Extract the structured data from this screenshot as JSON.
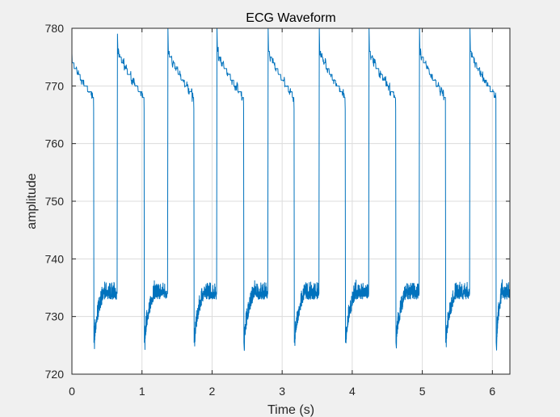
{
  "chart_data": {
    "type": "line",
    "title": "ECG Waveform",
    "xlabel": "Time (s)",
    "ylabel": "amplitude",
    "xlim": [
      0,
      6.25
    ],
    "ylim": [
      720,
      780
    ],
    "xticks": [
      0,
      1,
      2,
      3,
      4,
      5,
      6
    ],
    "yticks": [
      720,
      730,
      740,
      750,
      760,
      770,
      780
    ],
    "grid": true,
    "colors": {
      "line": "#0072BD",
      "axes_bg": "#ffffff",
      "figure_bg": "#f0f0f0",
      "grid": "#dcdcdc"
    },
    "series": [
      {
        "start": {
          "x": 0.0,
          "y": 774.5
        },
        "beats": [
          {
            "drop_t": 0.31,
            "peak_t": 0.65,
            "peak_y": 779
          },
          {
            "drop_t": 1.03,
            "peak_t": 1.37,
            "peak_y": 780
          },
          {
            "drop_t": 1.74,
            "peak_t": 2.07,
            "peak_y": 780
          },
          {
            "drop_t": 2.45,
            "peak_t": 2.8,
            "peak_y": 780
          },
          {
            "drop_t": 3.17,
            "peak_t": 3.53,
            "peak_y": 780
          },
          {
            "drop_t": 3.9,
            "peak_t": 4.24,
            "peak_y": 780
          },
          {
            "drop_t": 4.62,
            "peak_t": 4.96,
            "peak_y": 780
          },
          {
            "drop_t": 5.33,
            "peak_t": 5.68,
            "peak_y": 780
          },
          {
            "drop_t": 6.05,
            "peak_t": null,
            "peak_y": null
          }
        ],
        "shape": {
          "post_peak_y": 776,
          "pre_drop_y": 768,
          "post_drop_min_y": 725.5,
          "trough_plateau_y": 734,
          "end_y": 736,
          "noise_amplitude": 1.5
        }
      }
    ]
  }
}
